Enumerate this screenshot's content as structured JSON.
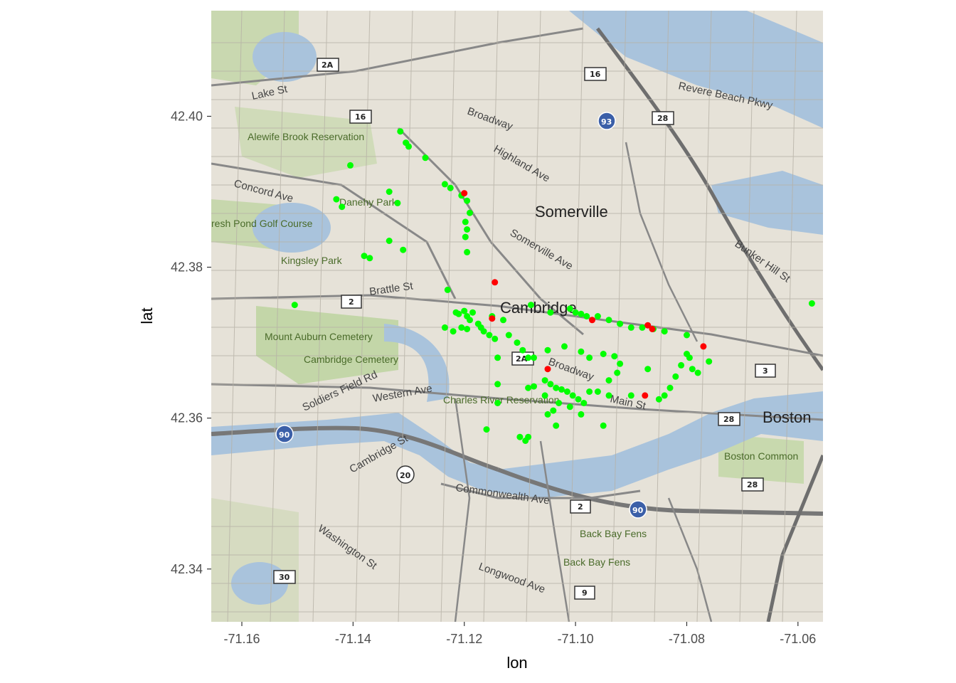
{
  "chart_data": {
    "type": "scatter",
    "title": "",
    "xlabel": "lon",
    "ylabel": "lat",
    "xlim": [
      -71.1655,
      -71.0555
    ],
    "ylim": [
      42.333,
      42.414
    ],
    "x_ticks": [
      -71.16,
      -71.14,
      -71.12,
      -71.1,
      -71.08,
      -71.06
    ],
    "x_tick_labels": [
      "-71.16",
      "-71.14",
      "-71.12",
      "-71.10",
      "-71.08",
      "-71.06"
    ],
    "y_ticks": [
      42.34,
      42.36,
      42.38,
      42.4
    ],
    "y_tick_labels": [
      "42.34",
      "42.36",
      "42.38",
      "42.40"
    ],
    "grid": false,
    "background": "street map tiles (Boston / Cambridge / Somerville)",
    "series": [
      {
        "color": "#00ff00",
        "points": [
          [
            -71.1315,
            42.398
          ],
          [
            -71.1305,
            42.3965
          ],
          [
            -71.13,
            42.396
          ],
          [
            -71.127,
            42.3945
          ],
          [
            -71.1405,
            42.3935
          ],
          [
            -71.1235,
            42.391
          ],
          [
            -71.1225,
            42.3905
          ],
          [
            -71.1205,
            42.3895
          ],
          [
            -71.1195,
            42.3888
          ],
          [
            -71.119,
            42.3872
          ],
          [
            -71.1198,
            42.386
          ],
          [
            -71.1195,
            42.385
          ],
          [
            -71.1198,
            42.384
          ],
          [
            -71.1335,
            42.39
          ],
          [
            -71.132,
            42.3885
          ],
          [
            -71.143,
            42.389
          ],
          [
            -71.142,
            42.388
          ],
          [
            -71.1335,
            42.3835
          ],
          [
            -71.131,
            42.3823
          ],
          [
            -71.1195,
            42.382
          ],
          [
            -71.138,
            42.3815
          ],
          [
            -71.137,
            42.3812
          ],
          [
            -71.1505,
            42.375
          ],
          [
            -71.123,
            42.377
          ],
          [
            -71.1215,
            42.374
          ],
          [
            -71.121,
            42.3738
          ],
          [
            -71.12,
            42.3742
          ],
          [
            -71.1195,
            42.3735
          ],
          [
            -71.119,
            42.373
          ],
          [
            -71.1185,
            42.374
          ],
          [
            -71.1175,
            42.3725
          ],
          [
            -71.117,
            42.372
          ],
          [
            -71.1165,
            42.3715
          ],
          [
            -71.1155,
            42.371
          ],
          [
            -71.1145,
            42.3705
          ],
          [
            -71.115,
            42.3735
          ],
          [
            -71.1235,
            42.372
          ],
          [
            -71.122,
            42.3715
          ],
          [
            -71.1205,
            42.372
          ],
          [
            -71.1195,
            42.3718
          ],
          [
            -71.113,
            42.373
          ],
          [
            -71.112,
            42.371
          ],
          [
            -71.1105,
            42.37
          ],
          [
            -71.1095,
            42.369
          ],
          [
            -71.1085,
            42.368
          ],
          [
            -71.1075,
            42.368
          ],
          [
            -71.114,
            42.368
          ],
          [
            -71.108,
            42.375
          ],
          [
            -71.1045,
            42.374
          ],
          [
            -71.101,
            42.3745
          ],
          [
            -71.1,
            42.374
          ],
          [
            -71.099,
            42.3738
          ],
          [
            -71.098,
            42.3735
          ],
          [
            -71.096,
            42.3735
          ],
          [
            -71.094,
            42.373
          ],
          [
            -71.092,
            42.3725
          ],
          [
            -71.09,
            42.372
          ],
          [
            -71.088,
            42.372
          ],
          [
            -71.086,
            42.3718
          ],
          [
            -71.084,
            42.3715
          ],
          [
            -71.08,
            42.371
          ],
          [
            -71.08,
            42.3685
          ],
          [
            -71.0795,
            42.368
          ],
          [
            -71.081,
            42.367
          ],
          [
            -71.079,
            42.3665
          ],
          [
            -71.078,
            42.366
          ],
          [
            -71.076,
            42.3675
          ],
          [
            -71.082,
            42.3655
          ],
          [
            -71.083,
            42.364
          ],
          [
            -71.084,
            42.363
          ],
          [
            -71.085,
            42.3625
          ],
          [
            -71.087,
            42.3665
          ],
          [
            -71.09,
            42.363
          ],
          [
            -71.092,
            42.3672
          ],
          [
            -71.093,
            42.3682
          ],
          [
            -71.095,
            42.3685
          ],
          [
            -71.0975,
            42.368
          ],
          [
            -71.099,
            42.3688
          ],
          [
            -71.102,
            42.3695
          ],
          [
            -71.105,
            42.369
          ],
          [
            -71.1085,
            42.364
          ],
          [
            -71.1075,
            42.3642
          ],
          [
            -71.1055,
            42.365
          ],
          [
            -71.1045,
            42.3645
          ],
          [
            -71.1035,
            42.364
          ],
          [
            -71.1025,
            42.3638
          ],
          [
            -71.1015,
            42.3635
          ],
          [
            -71.1005,
            42.363
          ],
          [
            -71.0995,
            42.3625
          ],
          [
            -71.0985,
            42.362
          ],
          [
            -71.0975,
            42.3635
          ],
          [
            -71.096,
            42.3635
          ],
          [
            -71.094,
            42.365
          ],
          [
            -71.0925,
            42.366
          ],
          [
            -71.1055,
            42.363
          ],
          [
            -71.103,
            42.362
          ],
          [
            -71.101,
            42.3615
          ],
          [
            -71.099,
            42.3605
          ],
          [
            -71.105,
            42.3605
          ],
          [
            -71.104,
            42.361
          ],
          [
            -71.1035,
            42.359
          ],
          [
            -71.114,
            42.362
          ],
          [
            -71.114,
            42.3645
          ],
          [
            -71.116,
            42.3585
          ],
          [
            -71.11,
            42.3575
          ],
          [
            -71.109,
            42.357
          ],
          [
            -71.1085,
            42.3575
          ],
          [
            -71.095,
            42.359
          ],
          [
            -71.094,
            42.363
          ],
          [
            -71.0575,
            42.3752
          ]
        ]
      },
      {
        "color": "#ff0000",
        "points": [
          [
            -71.1145,
            42.378
          ],
          [
            -71.115,
            42.3732
          ],
          [
            -71.097,
            42.373
          ],
          [
            -71.087,
            42.3723
          ],
          [
            -71.0862,
            42.3718
          ],
          [
            -71.077,
            42.3695
          ],
          [
            -71.105,
            42.3665
          ],
          [
            -71.0875,
            42.363
          ],
          [
            -71.12,
            42.3898
          ]
        ]
      }
    ]
  }
}
